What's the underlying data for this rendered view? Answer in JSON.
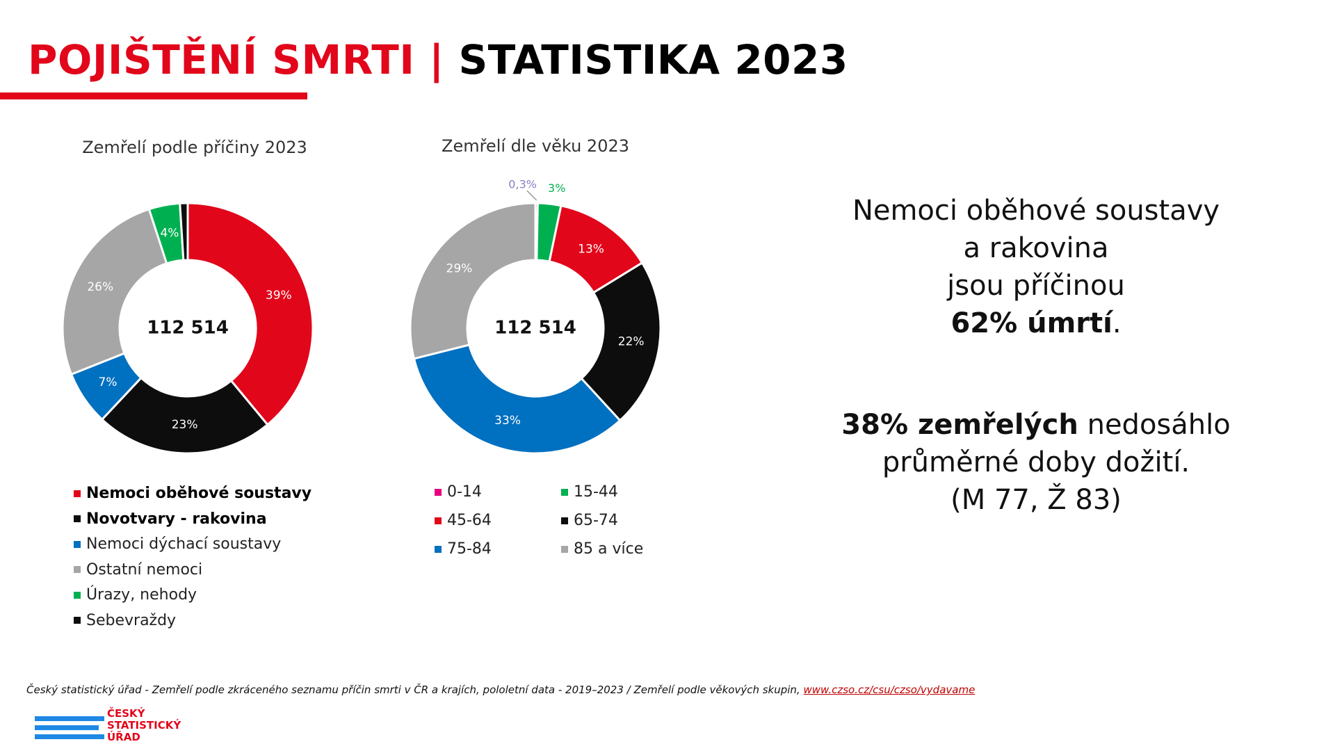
{
  "header": {
    "title_red": "POJIŠTĚNÍ SMRTI",
    "separator": " | ",
    "title_black": "STATISTIKA 2023"
  },
  "colors": {
    "red": "#e2061b",
    "black": "#0d0d0d",
    "blue": "#0070c0",
    "gray": "#a6a6a6",
    "green": "#00b050",
    "pink": "#e6007e"
  },
  "chart_data": [
    {
      "type": "pie",
      "title": "Zemřelí podle příčiny 2023",
      "center_label": "112 514",
      "categories": [
        "Nemoci oběhové soustavy",
        "Novotvary - rakovina",
        "Nemoci dýchací soustavy",
        "Ostatní nemoci",
        "Úrazy, nehody",
        "Sebevraždy"
      ],
      "values": [
        39,
        23,
        7,
        26,
        4,
        1
      ],
      "labels": [
        "39%",
        "23%",
        "7%",
        "26%",
        "4%",
        ""
      ],
      "colors": [
        "#e2061b",
        "#0d0d0d",
        "#0070c0",
        "#a6a6a6",
        "#00b050",
        "#0d0d0d"
      ],
      "legend": [
        {
          "label": "Nemoci oběhové soustavy",
          "color": "#e2061b",
          "bold": true
        },
        {
          "label": "Novotvary - rakovina",
          "color": "#0d0d0d",
          "bold": true
        },
        {
          "label": "Nemoci dýchací soustavy",
          "color": "#0070c0",
          "bold": false
        },
        {
          "label": "Ostatní nemoci",
          "color": "#a6a6a6",
          "bold": false
        },
        {
          "label": "Úrazy, nehody",
          "color": "#00b050",
          "bold": false
        },
        {
          "label": "Sebevraždy",
          "color": "#0d0d0d",
          "bold": false
        }
      ]
    },
    {
      "type": "pie",
      "title": "Zemřelí dle věku 2023",
      "center_label": "112 514",
      "categories": [
        "0-14",
        "15-44",
        "45-64",
        "65-74",
        "75-84",
        "85 a více"
      ],
      "values": [
        0.3,
        3,
        13,
        22,
        33,
        29
      ],
      "labels": [
        "0,3%",
        "3%",
        "13%",
        "22%",
        "33%",
        "29%"
      ],
      "colors": [
        "#e6007e",
        "#00b050",
        "#e2061b",
        "#0d0d0d",
        "#0070c0",
        "#a6a6a6"
      ],
      "legend": [
        {
          "label": "0-14",
          "color": "#e6007e"
        },
        {
          "label": "15-44",
          "color": "#00b050"
        },
        {
          "label": "45-64",
          "color": "#e2061b"
        },
        {
          "label": "65-74",
          "color": "#0d0d0d"
        },
        {
          "label": "75-84",
          "color": "#0070c0"
        },
        {
          "label": "85 a více",
          "color": "#a6a6a6"
        }
      ]
    }
  ],
  "callout1": {
    "line1": "Nemoci oběhové soustavy",
    "line2": "a rakovina",
    "line3": "jsou příčinou",
    "bold": "62% úmrtí",
    "tail": "."
  },
  "callout2": {
    "bold": "38% zemřelých",
    "line1_rest": " nedosáhlo",
    "line2": "průměrné doby dožití.",
    "line3": "(M 77, Ž 83)"
  },
  "source": {
    "text": "Český statistický úřad - Zemřelí podle zkráceného seznamu příčin smrti v ČR a krajích, pololetní data - 2019–2023 / Zemřelí podle věkových skupin, ",
    "link": "www.czso.cz/csu/czso/vydavame"
  },
  "logo": {
    "line1": "ČESKÝ",
    "line2": "STATISTICKÝ",
    "line3": "ÚŘAD"
  }
}
